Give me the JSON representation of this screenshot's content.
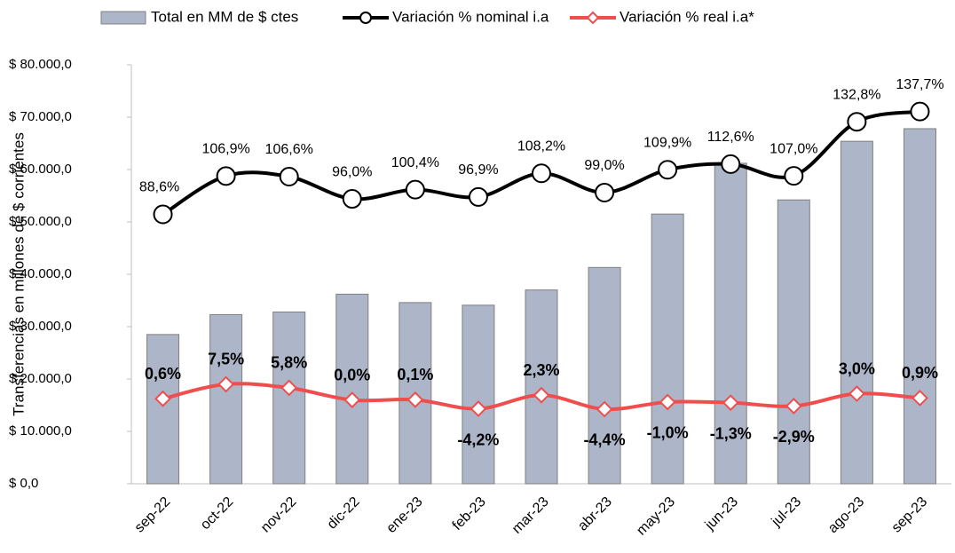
{
  "chart_data": {
    "type": "bar_line",
    "y_label": "Transferencias en millones de $ corrientes",
    "categories": [
      "sep-22",
      "oct-22",
      "nov-22",
      "dic-22",
      "ene-23",
      "feb-23",
      "mar-23",
      "abr-23",
      "may-23",
      "jun-23",
      "jul-23",
      "ago-23",
      "sep-23"
    ],
    "series": [
      {
        "name": "Total en MM de $ ctes",
        "type": "bar",
        "color": "#adb5c8",
        "values": [
          28500,
          32300,
          32800,
          36200,
          34600,
          34100,
          37000,
          41300,
          51500,
          61200,
          54200,
          65400,
          67800
        ]
      },
      {
        "name": "Variación % nominal i.a",
        "type": "line",
        "axis": "y2",
        "color": "#000000",
        "values": [
          88.6,
          106.9,
          106.6,
          96.0,
          100.4,
          96.9,
          108.2,
          99.0,
          109.9,
          112.6,
          107.0,
          132.8,
          137.7
        ],
        "value_labels": [
          "88,6%",
          "106,9%",
          "106,6%",
          "96,0%",
          "100,4%",
          "96,9%",
          "108,2%",
          "99,0%",
          "109,9%",
          "112,6%",
          "107,0%",
          "132,8%",
          "137,7%"
        ]
      },
      {
        "name": "Variación % real i.a*",
        "type": "line",
        "axis": "y2",
        "color": "#f04e4e",
        "values": [
          0.6,
          7.5,
          5.8,
          0.0,
          0.1,
          -4.2,
          2.3,
          -4.4,
          -1.0,
          -1.3,
          -2.9,
          3.0,
          0.9
        ],
        "value_labels": [
          "0,6%",
          "7,5%",
          "5,8%",
          "0,0%",
          "0,1%",
          "-4,2%",
          "2,3%",
          "-4,4%",
          "-1,0%",
          "-1,3%",
          "-2,9%",
          "3,0%",
          "0,9%"
        ]
      }
    ],
    "ylim": [
      0,
      80000
    ],
    "yticks": [
      {
        "value": 0,
        "label": "$ 0,0"
      },
      {
        "value": 10000,
        "label": "$ 10.000,0"
      },
      {
        "value": 20000,
        "label": "$ 20.000,0"
      },
      {
        "value": 30000,
        "label": "$ 30.000,0"
      },
      {
        "value": 40000,
        "label": "$ 40.000,0"
      },
      {
        "value": 50000,
        "label": "$ 50.000,0"
      },
      {
        "value": 60000,
        "label": "$ 60.000,0"
      },
      {
        "value": 70000,
        "label": "$ 70.000,0"
      },
      {
        "value": 80000,
        "label": "$ 80.000,0"
      }
    ],
    "y2lim": [
      -40,
      160
    ],
    "legend": "top"
  }
}
